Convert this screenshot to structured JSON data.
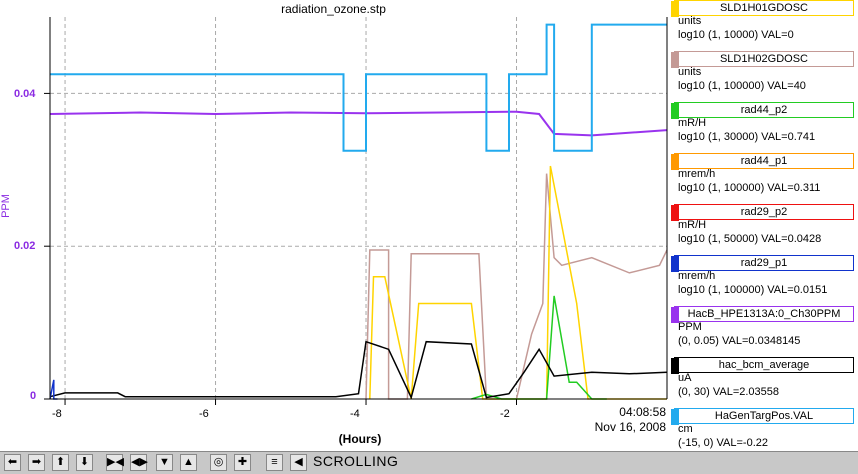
{
  "window": {
    "title": "radiation_ozone.stp"
  },
  "plot": {
    "y_ticks": [
      "0.04",
      "0.02",
      "0"
    ],
    "y_axis_label": "PPM",
    "x_ticks": [
      "-8",
      "-6",
      "-4",
      "-2"
    ],
    "x_axis_label": "(Hours)",
    "timestamp_time": "04:08:58",
    "timestamp_date": "Nov 16, 2008"
  },
  "legend": [
    {
      "name": "SLD1H01GDOSC",
      "units": "units",
      "range": "log10 (1, 10000) VAL=0",
      "color": "#ffd400"
    },
    {
      "name": "SLD1H02GDOSC",
      "units": "units",
      "range": "log10 (1, 100000) VAL=40",
      "color": "#c49a96"
    },
    {
      "name": "rad44_p2",
      "units": "mR/H",
      "range": "log10 (1, 30000) VAL=0.741",
      "color": "#22cc22"
    },
    {
      "name": "rad44_p1",
      "units": "mrem/h",
      "range": "log10 (1, 100000) VAL=0.311",
      "color": "#ff9900"
    },
    {
      "name": "rad29_p2",
      "units": "mR/H",
      "range": "log10 (1, 50000) VAL=0.0428",
      "color": "#ee1111"
    },
    {
      "name": "rad29_p1",
      "units": "mrem/h",
      "range": "log10 (1, 100000) VAL=0.0151",
      "color": "#1133cc"
    },
    {
      "name": "HacB_HPE1313A:0_Ch30PPM",
      "units": "PPM",
      "range": "(0, 0.05) VAL=0.0348145",
      "color": "#9933ee"
    },
    {
      "name": "hac_bcm_average",
      "units": "uA",
      "range": "(0, 30) VAL=2.03558",
      "color": "#000000"
    },
    {
      "name": "HaGenTargPos.VAL",
      "units": "cm",
      "range": "(-15, 0) VAL=-0.22",
      "color": "#22aaee"
    }
  ],
  "toolbar": {
    "status": "SCROLLING",
    "buttons": [
      "arrow-left-icon",
      "arrow-right-icon",
      "arrow-up-icon",
      "arrow-down-icon",
      "zoom-in-x-icon",
      "zoom-out-x-icon",
      "zoom-in-y-icon",
      "zoom-out-y-icon",
      "reset-zoom-icon",
      "record-icon",
      "add-icon",
      "config-icon",
      "back-icon"
    ]
  },
  "chart_data": {
    "type": "line",
    "title": "radiation_ozone.stp",
    "xlabel": "(Hours)",
    "ylabel": "PPM",
    "xlim": [
      -8.2,
      0
    ],
    "ylim": [
      0,
      0.05
    ],
    "grid": true,
    "series": [
      {
        "name": "HaGenTargPos.VAL",
        "color": "#22aaee",
        "x": [
          -8.2,
          -4.3,
          -4.3,
          -4.0,
          -4.0,
          -2.4,
          -2.4,
          -2.1,
          -2.1,
          -1.6,
          -1.6,
          -1.5,
          -1.5,
          -1.4,
          -1.4,
          -1.0,
          -1.0,
          0
        ],
        "y": [
          0.0425,
          0.0425,
          0.0325,
          0.0325,
          0.0425,
          0.0425,
          0.0325,
          0.0325,
          0.0425,
          0.0425,
          0.049,
          0.049,
          0.0325,
          0.0325,
          0.0325,
          0.0325,
          0.049,
          0.049
        ]
      },
      {
        "name": "HacB_HPE1313A:0_Ch30PPM",
        "color": "#9933ee",
        "x": [
          -8.2,
          -7,
          -6,
          -5,
          -4,
          -3,
          -2,
          -1.7,
          -1.5,
          -1.0,
          0
        ],
        "y": [
          0.0373,
          0.0375,
          0.0373,
          0.0375,
          0.0374,
          0.0375,
          0.0376,
          0.0373,
          0.0347,
          0.0345,
          0.0352
        ]
      },
      {
        "name": "hac_bcm_average",
        "color": "#000000",
        "x": [
          -8.2,
          -8.0,
          -7.7,
          -7.3,
          -7.2,
          -4.4,
          -4.1,
          -4.0,
          -3.7,
          -3.4,
          -3.2,
          -2.6,
          -2.4,
          -2.1,
          -1.9,
          -1.7,
          -1.5,
          -1.0,
          -0.5,
          0
        ],
        "y": [
          0.0003,
          0.0008,
          0.0008,
          0.0008,
          0.0003,
          0.0003,
          0.0007,
          0.0075,
          0.0065,
          0.0002,
          0.0075,
          0.0072,
          0.0002,
          0.0007,
          0.0035,
          0.0065,
          0.003,
          0.0035,
          0.0033,
          0.0035
        ]
      },
      {
        "name": "SLD1H02GDOSC",
        "color": "#c49a96",
        "x": [
          -4.0,
          -3.95,
          -3.7,
          -3.7,
          -3.45,
          -3.4,
          -2.5,
          -2.4,
          -2.0,
          -1.8,
          -1.65,
          -1.6,
          -1.5,
          -1.4,
          -1.0,
          -0.5,
          -0.1,
          0
        ],
        "y": [
          0.0,
          0.0195,
          0.0195,
          0.0,
          0.0,
          0.019,
          0.019,
          0.0,
          0.0,
          0.0085,
          0.0125,
          0.0295,
          0.0185,
          0.0175,
          0.0185,
          0.0165,
          0.0175,
          0.0195
        ]
      },
      {
        "name": "SLD1H01GDOSC",
        "color": "#ffd400",
        "x": [
          -3.95,
          -3.9,
          -3.75,
          -3.4,
          -3.3,
          -2.6,
          -2.45,
          -1.6,
          -1.55,
          -1.2,
          -1.05,
          -0.3,
          0
        ],
        "y": [
          0.0,
          0.016,
          0.016,
          0.0,
          0.0125,
          0.0125,
          0.0,
          0.0,
          0.0305,
          0.0125,
          0.0,
          0.0,
          0.0
        ]
      },
      {
        "name": "rad44_p2",
        "color": "#22cc22",
        "x": [
          -2.6,
          -2.4,
          -2.2,
          -1.6,
          -1.5,
          -1.3,
          -1.2,
          -1.0,
          -0.8
        ],
        "y": [
          0.0,
          0.0006,
          0.0,
          0.0,
          0.0135,
          0.0022,
          0.0022,
          0.0,
          0.0
        ]
      },
      {
        "name": "rad29_p1",
        "color": "#1133cc",
        "x": [
          -8.2,
          -8.15,
          -8.15,
          -8.1
        ],
        "y": [
          0.0,
          0.0025,
          0.0,
          0.0
        ]
      }
    ]
  }
}
